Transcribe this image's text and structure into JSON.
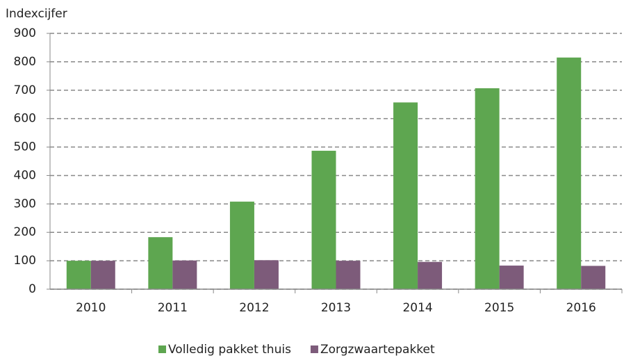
{
  "chart_data": {
    "type": "bar",
    "y_label": "Indexcijfer",
    "categories": [
      "2010",
      "2011",
      "2012",
      "2013",
      "2014",
      "2015",
      "2016"
    ],
    "series": [
      {
        "name": "Volledig pakket thuis",
        "color": "#5ea650",
        "values": [
          100,
          183,
          308,
          487,
          657,
          707,
          815
        ]
      },
      {
        "name": "Zorgzwaartepakket",
        "color": "#7d5b7a",
        "values": [
          100,
          101,
          102,
          100,
          96,
          83,
          82
        ]
      }
    ],
    "ylim": [
      0,
      900
    ],
    "yticks": [
      0,
      100,
      200,
      300,
      400,
      500,
      600,
      700,
      800,
      900
    ],
    "grid": true,
    "legend": "bottom"
  }
}
